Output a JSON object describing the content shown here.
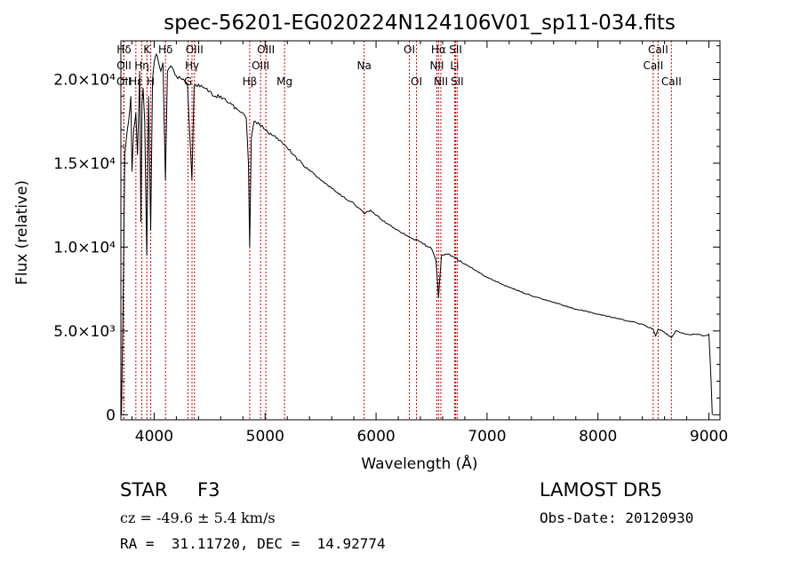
{
  "chart_data": {
    "type": "line",
    "title": "spec-56201-EG020224N124106V01_sp11-034.fits",
    "xlabel": "Wavelength (Å)",
    "ylabel": "Flux (relative)",
    "xlim": [
      3700,
      9100
    ],
    "ylim": [
      -300,
      22300
    ],
    "x_ticks": [
      4000,
      5000,
      6000,
      7000,
      8000,
      9000
    ],
    "y_ticks": [
      {
        "value": 0,
        "label": "0"
      },
      {
        "value": 5000,
        "label": "5.0×10³"
      },
      {
        "value": 10000,
        "label": "1.0×10⁴"
      },
      {
        "value": 15000,
        "label": "1.5×10⁴"
      },
      {
        "value": 20000,
        "label": "2.0×10⁴"
      }
    ],
    "grid": false,
    "legend": "none",
    "series_color": "#000000",
    "line_marker_color": "#cc0000",
    "spectrum": {
      "x": [
        3705,
        3720,
        3735,
        3750,
        3770,
        3790,
        3800,
        3815,
        3835,
        3850,
        3870,
        3880,
        3890,
        3900,
        3915,
        3933,
        3950,
        3968,
        3985,
        4000,
        4020,
        4040,
        4060,
        4080,
        4101,
        4120,
        4150,
        4200,
        4250,
        4300,
        4340,
        4360,
        4400,
        4450,
        4500,
        4550,
        4600,
        4650,
        4700,
        4750,
        4800,
        4830,
        4850,
        4861,
        4875,
        4900,
        4950,
        5000,
        5100,
        5200,
        5300,
        5400,
        5500,
        5600,
        5700,
        5800,
        5893,
        5950,
        6000,
        6100,
        6200,
        6300,
        6400,
        6500,
        6540,
        6563,
        6590,
        6650,
        6700,
        6800,
        6900,
        7000,
        7200,
        7400,
        7600,
        7800,
        8000,
        8200,
        8400,
        8498,
        8520,
        8542,
        8580,
        8662,
        8700,
        8800,
        8900,
        8950,
        9000,
        9020,
        9030
      ],
      "y": [
        0,
        6500,
        15500,
        16500,
        17500,
        19000,
        14500,
        17000,
        18000,
        15500,
        20500,
        11500,
        18500,
        19500,
        17500,
        9500,
        19000,
        11000,
        20000,
        21000,
        21500,
        21000,
        20500,
        21000,
        14000,
        20500,
        20800,
        20200,
        20000,
        19700,
        14000,
        19600,
        19700,
        19500,
        19300,
        19000,
        19000,
        18700,
        18500,
        18200,
        18000,
        17700,
        15000,
        10000,
        16500,
        17500,
        17300,
        17000,
        16500,
        15900,
        15200,
        14600,
        14000,
        13500,
        13000,
        12600,
        12000,
        12200,
        11900,
        11400,
        11000,
        10600,
        10300,
        9900,
        9200,
        7000,
        9500,
        9600,
        9400,
        9000,
        8600,
        8200,
        7600,
        7100,
        6700,
        6300,
        6000,
        5700,
        5400,
        5100,
        4700,
        5100,
        5000,
        4600,
        5000,
        4800,
        4800,
        4700,
        4800,
        2000,
        0
      ]
    },
    "lines": [
      {
        "label": "Hδ",
        "x": 3728,
        "row": 1
      },
      {
        "label": "OII",
        "x": 3728,
        "row": 2
      },
      {
        "label": "OII",
        "x": 3726,
        "row": 3
      },
      {
        "label": "Hε",
        "x": 3835,
        "row": 3
      },
      {
        "label": "Hη",
        "x": 3889,
        "row": 2
      },
      {
        "label": "K",
        "x": 3934,
        "row": 1
      },
      {
        "label": "H",
        "x": 3969,
        "row": 3
      },
      {
        "label": "Hδ",
        "x": 4102,
        "row": 1
      },
      {
        "label": "G",
        "x": 4305,
        "row": 3
      },
      {
        "label": "OIII",
        "x": 4363,
        "row": 1
      },
      {
        "label": "Hγ",
        "x": 4341,
        "row": 2
      },
      {
        "label": "Hβ",
        "x": 4861,
        "row": 3
      },
      {
        "label": "OIII",
        "x": 4959,
        "row": 2
      },
      {
        "label": "OIII",
        "x": 5007,
        "row": 1
      },
      {
        "label": "Mg",
        "x": 5175,
        "row": 3
      },
      {
        "label": "Na",
        "x": 5893,
        "row": 2
      },
      {
        "label": "OI",
        "x": 6300,
        "row": 1
      },
      {
        "label": "OI",
        "x": 6364,
        "row": 3
      },
      {
        "label": "NII",
        "x": 6548,
        "row": 2
      },
      {
        "label": "Hα",
        "x": 6563,
        "row": 1
      },
      {
        "label": "NII",
        "x": 6584,
        "row": 3
      },
      {
        "label": "Li",
        "x": 6708,
        "row": 2
      },
      {
        "label": "SII",
        "x": 6717,
        "row": 1
      },
      {
        "label": "SII",
        "x": 6731,
        "row": 3
      },
      {
        "label": "CaII",
        "x": 8498,
        "row": 2
      },
      {
        "label": "CaII",
        "x": 8542,
        "row": 1
      },
      {
        "label": "CaII",
        "x": 8662,
        "row": 3
      }
    ]
  },
  "info": {
    "class_label": "STAR",
    "subclass": "F3",
    "survey": "LAMOST DR5",
    "cz": "cz = -49.6 ± 5.4 km/s",
    "obs_date": "Obs-Date: 20120930",
    "coords": "RA =  31.11720, DEC =  14.92774"
  }
}
